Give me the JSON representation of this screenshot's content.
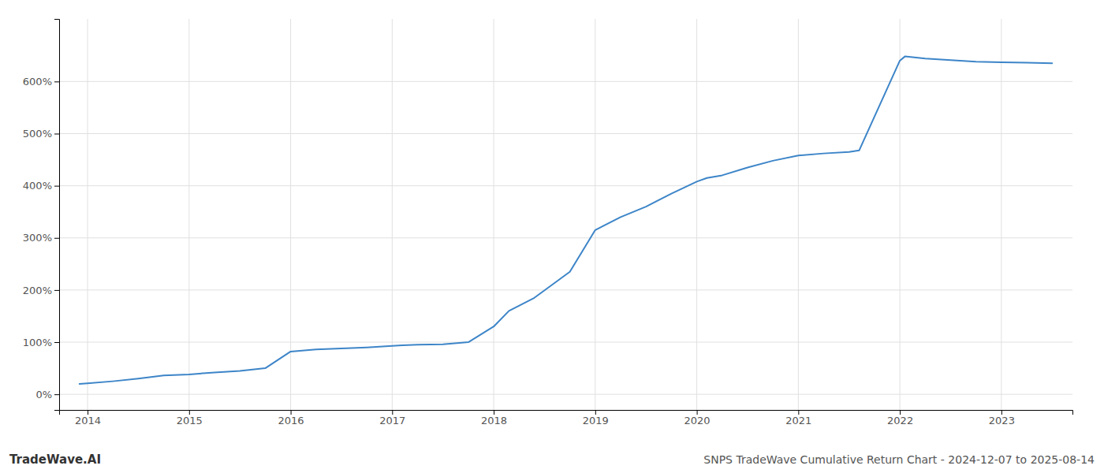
{
  "chart_data": {
    "type": "line",
    "title": "SNPS TradeWave Cumulative Return Chart - 2024-12-07 to 2025-08-14",
    "annotations": [
      "TradeWave.AI"
    ],
    "color": "#3d85c8",
    "x": [
      2013.92,
      2014.0,
      2014.25,
      2014.5,
      2014.75,
      2015.0,
      2015.25,
      2015.5,
      2015.75,
      2016.0,
      2016.25,
      2016.5,
      2016.75,
      2017.0,
      2017.1,
      2017.25,
      2017.5,
      2017.75,
      2018.0,
      2018.15,
      2018.4,
      2018.75,
      2019.0,
      2019.25,
      2019.5,
      2019.75,
      2020.0,
      2020.1,
      2020.25,
      2020.5,
      2020.75,
      2021.0,
      2021.25,
      2021.5,
      2021.6,
      2022.0,
      2022.05,
      2022.25,
      2022.5,
      2022.75,
      2023.0,
      2023.25,
      2023.5
    ],
    "values": [
      20,
      21,
      25,
      30,
      36,
      38,
      42,
      45,
      50,
      82,
      86,
      88,
      90,
      93,
      94,
      95,
      96,
      100,
      130,
      160,
      185,
      235,
      315,
      340,
      360,
      385,
      408,
      415,
      420,
      435,
      448,
      458,
      462,
      465,
      468,
      640,
      648,
      644,
      641,
      638,
      637,
      636,
      635
    ],
    "xlim": [
      2013.72,
      2023.7
    ],
    "ylim": [
      -30,
      720
    ],
    "xticks": [
      2014,
      2015,
      2016,
      2017,
      2018,
      2019,
      2020,
      2021,
      2022,
      2023
    ],
    "yticks": [
      {
        "value": 0,
        "label": "0%"
      },
      {
        "value": 100,
        "label": "100%"
      },
      {
        "value": 200,
        "label": "200%"
      },
      {
        "value": 300,
        "label": "300%"
      },
      {
        "value": 400,
        "label": "400%"
      },
      {
        "value": 500,
        "label": "500%"
      },
      {
        "value": 600,
        "label": "600%"
      }
    ],
    "grid": true
  }
}
